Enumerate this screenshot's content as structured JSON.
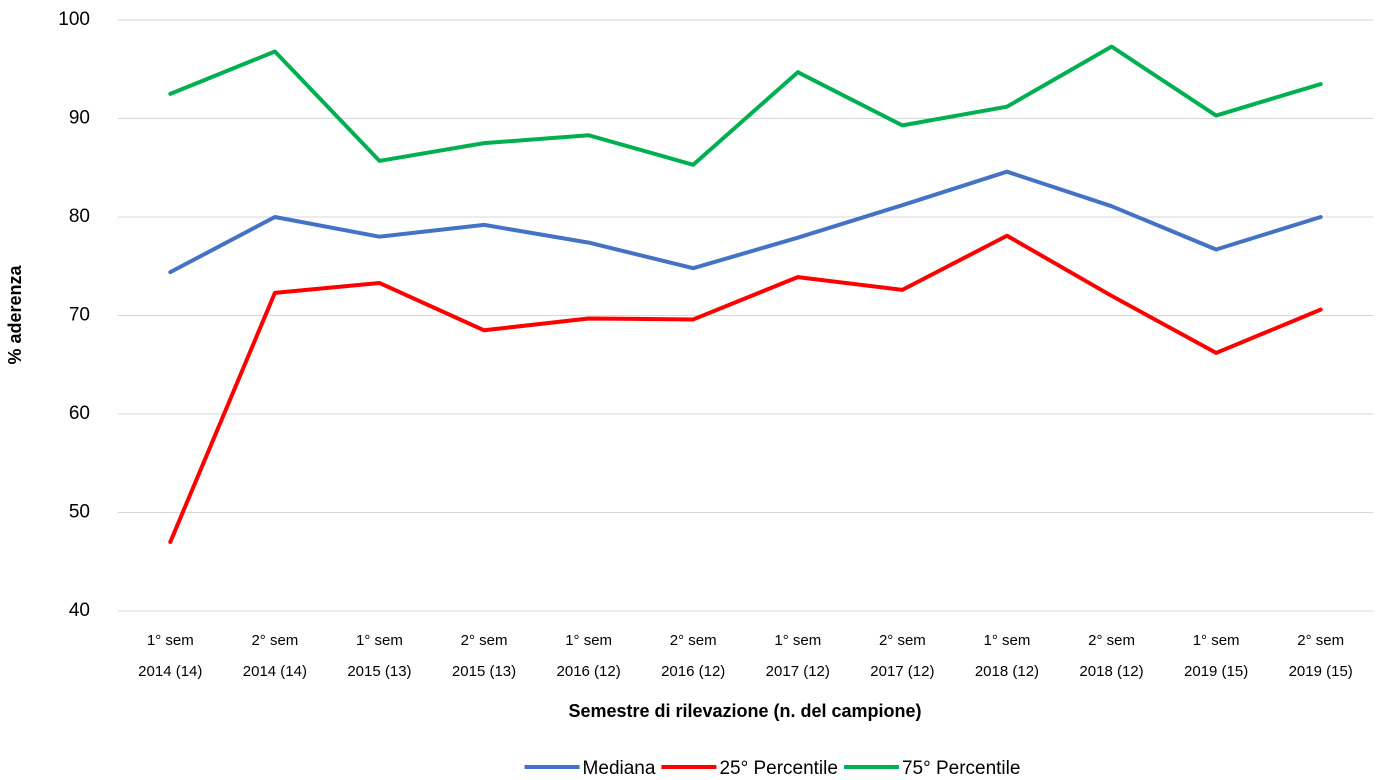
{
  "chart_data": {
    "type": "line",
    "y_label": "% aderenza",
    "x_label": "Semestre di rilevazione (n. del campione)",
    "categories": [
      [
        "1° sem",
        "2014 (14)"
      ],
      [
        "2° sem",
        "2014 (14)"
      ],
      [
        "1° sem",
        "2015 (13)"
      ],
      [
        "2° sem",
        "2015 (13)"
      ],
      [
        "1° sem",
        "2016 (12)"
      ],
      [
        "2° sem",
        "2016 (12)"
      ],
      [
        "1° sem",
        "2017 (12)"
      ],
      [
        "2° sem",
        "2017 (12)"
      ],
      [
        "1° sem",
        "2018 (12)"
      ],
      [
        "2° sem",
        "2018 (12)"
      ],
      [
        "1° sem",
        "2019 (15)"
      ],
      [
        "2° sem",
        "2019 (15)"
      ]
    ],
    "series": [
      {
        "name": "Mediana",
        "color": "#4472c4",
        "values": [
          74.4,
          80.0,
          78.0,
          79.2,
          77.4,
          74.8,
          77.9,
          81.2,
          84.6,
          81.1,
          76.7,
          80.0
        ]
      },
      {
        "name": "25° Percentile",
        "color": "#ff0000",
        "values": [
          47.0,
          72.3,
          73.3,
          68.5,
          69.7,
          69.6,
          73.9,
          72.6,
          78.1,
          72.0,
          66.2,
          70.6
        ]
      },
      {
        "name": "75° Percentile",
        "color": "#00b050",
        "values": [
          92.5,
          96.8,
          85.7,
          87.5,
          88.3,
          85.3,
          94.7,
          89.3,
          91.2,
          97.3,
          90.3,
          93.5
        ]
      }
    ],
    "ylim": [
      40,
      100
    ],
    "yticks": [
      40,
      50,
      60,
      70,
      80,
      90,
      100
    ],
    "grid": true,
    "legend": "bottom"
  }
}
